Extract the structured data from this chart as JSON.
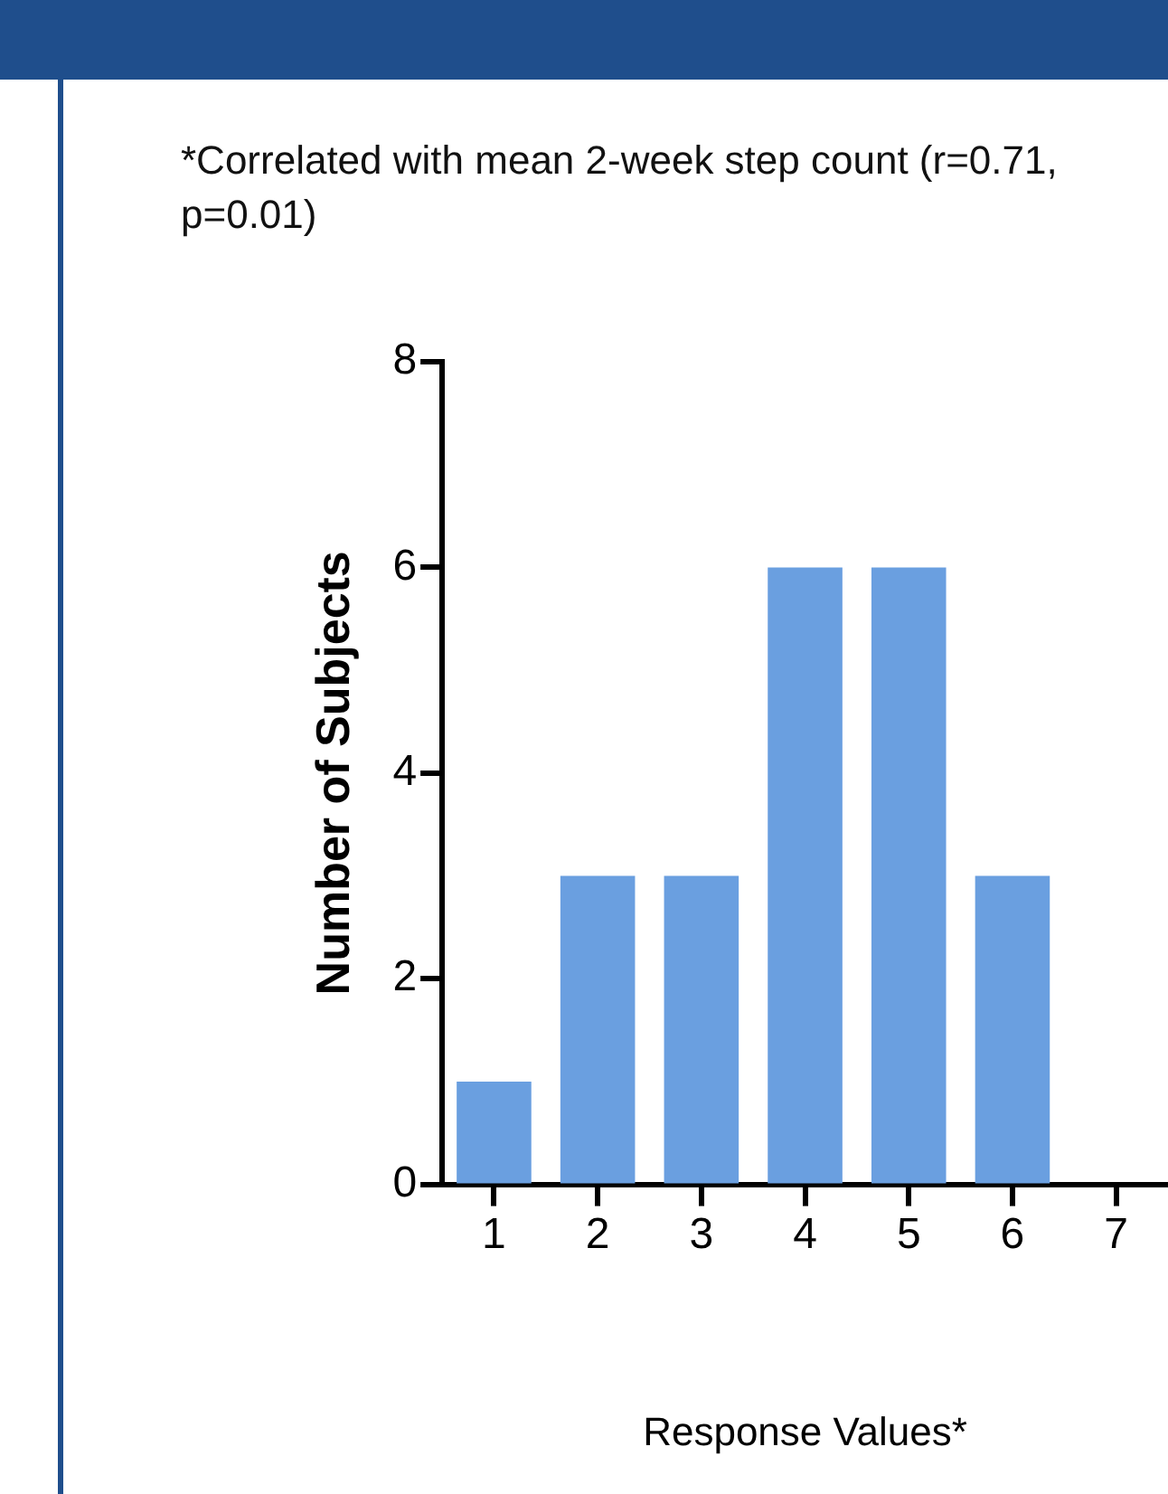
{
  "chart_data": {
    "type": "bar",
    "xlabel": "Response Values*",
    "ylabel": "Number of Subjects",
    "annotations": [
      "*Correlated with mean 2-week step count (r=0.71, p=0.01)"
    ],
    "categories": [
      "1",
      "2",
      "3",
      "4",
      "5",
      "6",
      "7"
    ],
    "values": [
      1,
      3,
      3,
      6,
      6,
      3,
      0
    ],
    "color": "#6a9fe0",
    "ylim": [
      0,
      8
    ],
    "yticks": [
      0,
      2,
      4,
      6,
      8
    ],
    "grid": false,
    "legend": false
  }
}
